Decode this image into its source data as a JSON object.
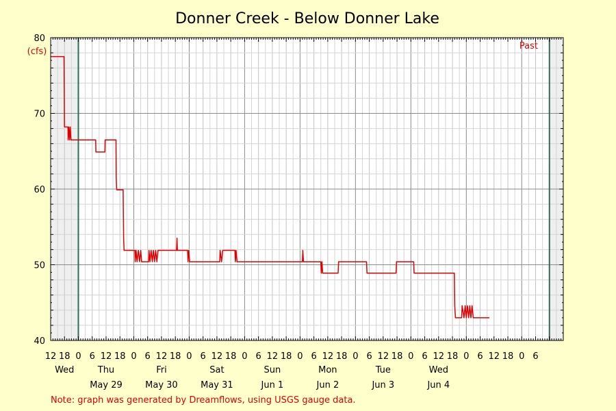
{
  "chart_data": {
    "type": "line",
    "title": "Donner Creek - Below Donner Lake",
    "ylabel": "(cfs)",
    "ylim": [
      40,
      80
    ],
    "y_ticks": [
      40,
      50,
      60,
      70,
      80
    ],
    "x_range_hours": [
      -12,
      210
    ],
    "past_label": "Past",
    "past_start_hour": 0,
    "past_end_hour": 204,
    "note": "Note: graph was generated by Dreamflows, using USGS gauge data.",
    "hour_tick_labels": [
      {
        "hour": -12,
        "label": "12"
      },
      {
        "hour": -6,
        "label": "18"
      },
      {
        "hour": 0,
        "label": "0"
      },
      {
        "hour": 6,
        "label": "6"
      },
      {
        "hour": 12,
        "label": "12"
      },
      {
        "hour": 18,
        "label": "18"
      },
      {
        "hour": 24,
        "label": "0"
      },
      {
        "hour": 30,
        "label": "6"
      },
      {
        "hour": 36,
        "label": "12"
      },
      {
        "hour": 42,
        "label": "18"
      },
      {
        "hour": 48,
        "label": "0"
      },
      {
        "hour": 54,
        "label": "6"
      },
      {
        "hour": 60,
        "label": "12"
      },
      {
        "hour": 66,
        "label": "18"
      },
      {
        "hour": 72,
        "label": "0"
      },
      {
        "hour": 78,
        "label": "6"
      },
      {
        "hour": 84,
        "label": "12"
      },
      {
        "hour": 90,
        "label": "18"
      },
      {
        "hour": 96,
        "label": "0"
      },
      {
        "hour": 102,
        "label": "6"
      },
      {
        "hour": 108,
        "label": "12"
      },
      {
        "hour": 114,
        "label": "18"
      },
      {
        "hour": 120,
        "label": "0"
      },
      {
        "hour": 126,
        "label": "6"
      },
      {
        "hour": 132,
        "label": "12"
      },
      {
        "hour": 138,
        "label": "18"
      },
      {
        "hour": 144,
        "label": "0"
      },
      {
        "hour": 150,
        "label": "6"
      },
      {
        "hour": 156,
        "label": "12"
      },
      {
        "hour": 162,
        "label": "18"
      },
      {
        "hour": 168,
        "label": "0"
      },
      {
        "hour": 174,
        "label": "6"
      },
      {
        "hour": 180,
        "label": "12"
      },
      {
        "hour": 186,
        "label": "18"
      },
      {
        "hour": 192,
        "label": "0"
      },
      {
        "hour": 198,
        "label": "6"
      }
    ],
    "day_labels": [
      {
        "hour": -6,
        "day": "Wed",
        "date": ""
      },
      {
        "hour": 12,
        "day": "Thu",
        "date": "May 29"
      },
      {
        "hour": 36,
        "day": "Fri",
        "date": "May 30"
      },
      {
        "hour": 60,
        "day": "Sat",
        "date": "May 31"
      },
      {
        "hour": 84,
        "day": "Sun",
        "date": "Jun 1"
      },
      {
        "hour": 108,
        "day": "Mon",
        "date": "Jun 2"
      },
      {
        "hour": 132,
        "day": "Tue",
        "date": "Jun 3"
      },
      {
        "hour": 156,
        "day": "Wed",
        "date": "Jun 4"
      }
    ],
    "series": [
      {
        "color": "#e00000",
        "points": [
          [
            -12,
            77.5
          ],
          [
            -6.2,
            77.5
          ],
          [
            -6,
            68.2
          ],
          [
            -4.5,
            68.2
          ],
          [
            -4.4,
            66.5
          ],
          [
            -4.1,
            68.2
          ],
          [
            -3.8,
            66.5
          ],
          [
            -3.5,
            68.2
          ],
          [
            -3.2,
            66.5
          ],
          [
            7.5,
            66.5
          ],
          [
            7.6,
            64.9
          ],
          [
            11.5,
            64.9
          ],
          [
            11.6,
            66.5
          ],
          [
            16.3,
            66.5
          ],
          [
            16.4,
            61.5
          ],
          [
            16.6,
            59.9
          ],
          [
            19.4,
            59.9
          ],
          [
            19.6,
            53.5
          ],
          [
            19.8,
            51.9
          ],
          [
            24.5,
            51.9
          ],
          [
            24.6,
            50.4
          ],
          [
            25,
            51.9
          ],
          [
            25.4,
            50.4
          ],
          [
            26,
            51.9
          ],
          [
            26.5,
            50.4
          ],
          [
            27,
            51.9
          ],
          [
            27.4,
            50.4
          ],
          [
            30.4,
            50.4
          ],
          [
            30.6,
            51.9
          ],
          [
            31,
            50.4
          ],
          [
            31.5,
            51.9
          ],
          [
            32,
            50.4
          ],
          [
            32.5,
            51.9
          ],
          [
            33,
            50.4
          ],
          [
            33.5,
            51.9
          ],
          [
            34,
            50.4
          ],
          [
            34.5,
            51.9
          ],
          [
            42.5,
            51.9
          ],
          [
            42.7,
            53.5
          ],
          [
            42.9,
            51.9
          ],
          [
            47.3,
            51.9
          ],
          [
            47.5,
            50.4
          ],
          [
            47.8,
            51.9
          ],
          [
            48.2,
            50.4
          ],
          [
            61.2,
            50.4
          ],
          [
            61.4,
            51.9
          ],
          [
            62,
            50.4
          ],
          [
            62.5,
            51.9
          ],
          [
            67.8,
            51.9
          ],
          [
            68,
            50.4
          ],
          [
            68.3,
            51.9
          ],
          [
            68.7,
            50.4
          ],
          [
            97,
            50.4
          ],
          [
            97.2,
            51.9
          ],
          [
            97.5,
            50.4
          ],
          [
            105,
            50.4
          ],
          [
            105.2,
            48.9
          ],
          [
            105.5,
            50.4
          ],
          [
            105.8,
            48.9
          ],
          [
            112.5,
            48.9
          ],
          [
            112.7,
            50.4
          ],
          [
            124.8,
            50.4
          ],
          [
            125,
            48.9
          ],
          [
            137.6,
            48.9
          ],
          [
            137.8,
            50.4
          ],
          [
            145.2,
            50.4
          ],
          [
            145.4,
            48.9
          ],
          [
            162.8,
            48.9
          ],
          [
            163,
            44.6
          ],
          [
            163.3,
            43
          ],
          [
            166,
            43
          ],
          [
            166.2,
            44.6
          ],
          [
            167,
            43
          ],
          [
            167.5,
            44.6
          ],
          [
            168,
            43
          ],
          [
            168.5,
            44.6
          ],
          [
            169,
            43
          ],
          [
            169.5,
            44.6
          ],
          [
            170,
            43
          ],
          [
            170.5,
            44.6
          ],
          [
            171,
            43
          ],
          [
            178,
            43
          ]
        ]
      }
    ]
  }
}
